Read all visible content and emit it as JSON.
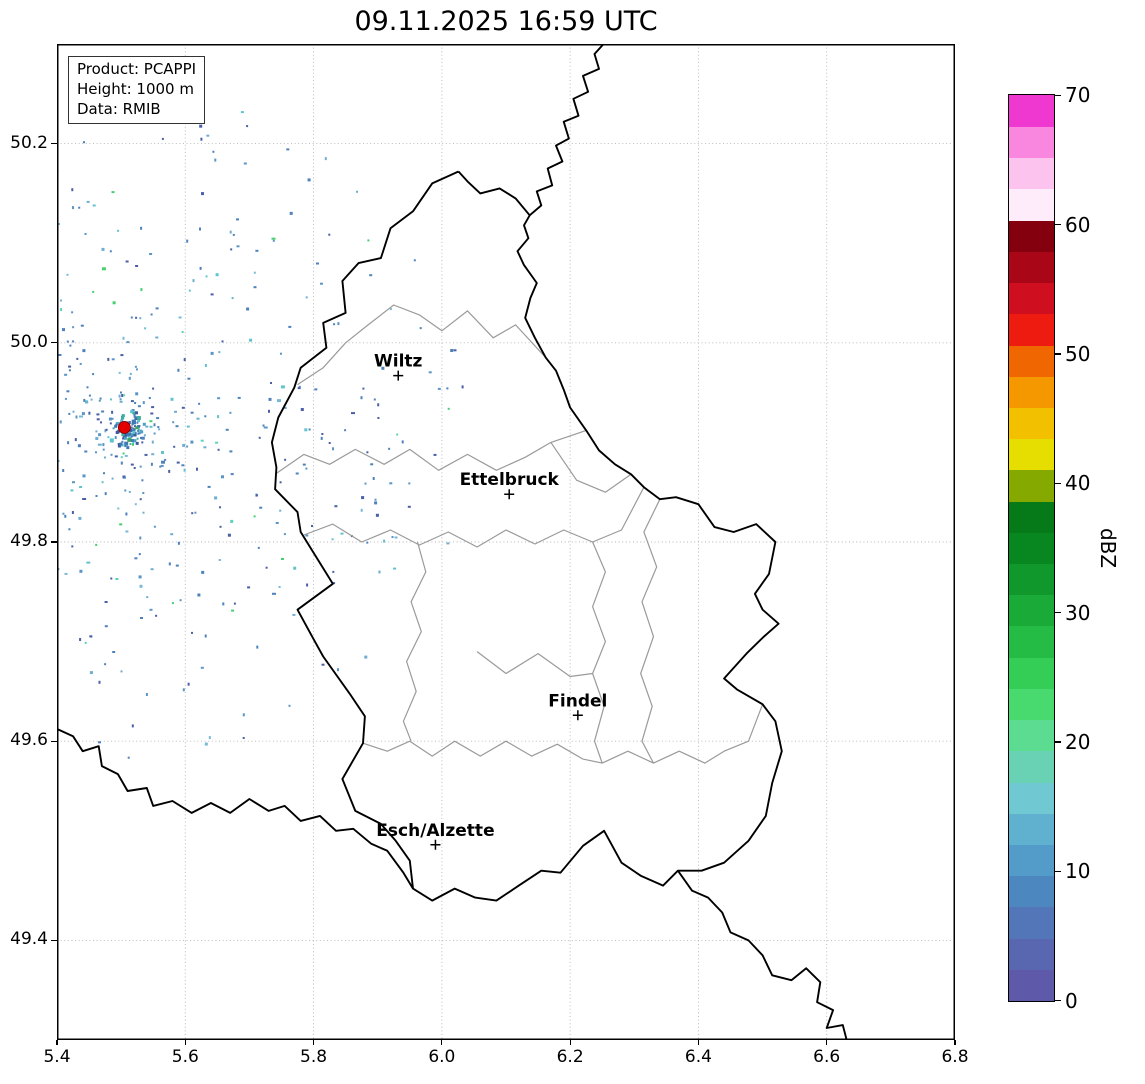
{
  "title": "09.11.2025 16:59 UTC",
  "info_box": {
    "lines": [
      "Product: PCAPPI",
      "Height: 1000 m",
      "Data: RMIB"
    ]
  },
  "chart_data": {
    "type": "heatmap",
    "title": "09.11.2025 16:59 UTC",
    "product": "PCAPPI",
    "height": "1000 m",
    "data_source": "RMIB",
    "x_axis": {
      "range": [
        5.4,
        6.8
      ],
      "ticks": [
        5.4,
        5.6,
        5.8,
        6.0,
        6.2,
        6.4,
        6.6,
        6.8
      ]
    },
    "y_axis": {
      "range": [
        49.3,
        50.3
      ],
      "ticks": [
        49.4,
        49.6,
        49.8,
        50.0,
        50.2
      ]
    },
    "grid": "dotted",
    "colorbar": {
      "label": "dBZ",
      "range": [
        0,
        70
      ],
      "ticks": [
        0,
        10,
        20,
        30,
        40,
        50,
        60,
        70
      ],
      "step": 2.5,
      "colors_bottom_to_top": [
        "#5e59a8",
        "#5867b0",
        "#5276b8",
        "#4d87c0",
        "#539bc8",
        "#60b1cf",
        "#6fc8d2",
        "#6ad2b4",
        "#5cdc91",
        "#48da6e",
        "#34cd55",
        "#25bc45",
        "#1aaa38",
        "#10982c",
        "#088620",
        "#067a18",
        "#86a900",
        "#e5de00",
        "#f3c000",
        "#f59800",
        "#f06600",
        "#ee1c10",
        "#cf0e20",
        "#a90617",
        "#84000f",
        "#feecfa",
        "#fcc3ee",
        "#f987e0"
      ],
      "top_color": "#ee38d0"
    },
    "cities": [
      {
        "name": "Wiltz",
        "lon": 5.932,
        "lat": 49.967
      },
      {
        "name": "Ettelbruck",
        "lon": 6.105,
        "lat": 49.848
      },
      {
        "name": "Findel",
        "lon": 6.212,
        "lat": 49.626
      },
      {
        "name": "Esch/Alzette",
        "lon": 5.99,
        "lat": 49.496
      }
    ],
    "radar_site": {
      "lon": 5.505,
      "lat": 49.915,
      "marker_color": "#e50000"
    },
    "echo_field": {
      "center_lon": 5.505,
      "center_lat": 49.915,
      "radius_px": 345,
      "count": 640,
      "core_count": 85,
      "seed": 20251109,
      "palette": [
        [
          "#4a5fa8",
          0.22
        ],
        [
          "#4d82bb",
          0.3
        ],
        [
          "#5b95c6",
          0.18
        ],
        [
          "#6fadd2",
          0.1
        ],
        [
          "#79b9d8",
          0.06
        ],
        [
          "#62c3cf",
          0.07
        ],
        [
          "#5cd3b8",
          0.04
        ],
        [
          "#46cf6e",
          0.03
        ]
      ],
      "core_palette": [
        [
          "#3d5a9e",
          0.3
        ],
        [
          "#4179b2",
          0.25
        ],
        [
          "#49a0c6",
          0.15
        ],
        [
          "#3fae9f",
          0.12
        ],
        [
          "#57c7cf",
          0.1
        ],
        [
          "#3aa65a",
          0.08
        ]
      ]
    }
  },
  "map_borders": {
    "country_color": "#000000",
    "district_color": "#9a9a9a",
    "country": [
      [
        [
          6.026,
          50.172
        ],
        [
          5.985,
          50.16
        ],
        [
          5.955,
          50.132
        ],
        [
          5.92,
          50.115
        ],
        [
          5.905,
          50.085
        ],
        [
          5.87,
          50.08
        ],
        [
          5.845,
          50.062
        ],
        [
          5.85,
          50.03
        ],
        [
          5.815,
          50.02
        ],
        [
          5.82,
          49.995
        ],
        [
          5.78,
          49.975
        ],
        [
          5.77,
          49.955
        ],
        [
          5.745,
          49.925
        ],
        [
          5.735,
          49.9
        ],
        [
          5.742,
          49.875
        ],
        [
          5.74,
          49.853
        ],
        [
          5.775,
          49.83
        ],
        [
          5.78,
          49.81
        ],
        [
          5.83,
          49.758
        ],
        [
          5.775,
          49.732
        ],
        [
          5.802,
          49.7
        ],
        [
          5.815,
          49.685
        ],
        [
          5.856,
          49.648
        ],
        [
          5.88,
          49.625
        ],
        [
          5.877,
          49.598
        ],
        [
          5.845,
          49.562
        ],
        [
          5.865,
          49.53
        ],
        [
          5.905,
          49.517
        ],
        [
          5.928,
          49.5
        ],
        [
          5.95,
          49.48
        ],
        [
          5.955,
          49.452
        ],
        [
          5.985,
          49.44
        ],
        [
          6.02,
          49.452
        ],
        [
          6.052,
          49.443
        ],
        [
          6.085,
          49.44
        ],
        [
          6.12,
          49.455
        ],
        [
          6.155,
          49.47
        ],
        [
          6.185,
          49.468
        ],
        [
          6.22,
          49.495
        ],
        [
          6.253,
          49.51
        ],
        [
          6.28,
          49.478
        ],
        [
          6.31,
          49.465
        ],
        [
          6.345,
          49.455
        ],
        [
          6.368,
          49.47
        ],
        [
          6.405,
          49.47
        ],
        [
          6.44,
          49.478
        ],
        [
          6.478,
          49.5
        ],
        [
          6.505,
          49.525
        ],
        [
          6.515,
          49.558
        ],
        [
          6.53,
          49.59
        ],
        [
          6.52,
          49.62
        ],
        [
          6.5,
          49.637
        ],
        [
          6.46,
          49.652
        ],
        [
          6.44,
          49.663
        ],
        [
          6.475,
          49.688
        ],
        [
          6.502,
          49.705
        ],
        [
          6.525,
          49.718
        ],
        [
          6.5,
          49.732
        ],
        [
          6.488,
          49.748
        ],
        [
          6.51,
          49.768
        ],
        [
          6.52,
          49.8
        ],
        [
          6.49,
          49.818
        ],
        [
          6.455,
          49.81
        ],
        [
          6.425,
          49.815
        ],
        [
          6.4,
          49.838
        ],
        [
          6.365,
          49.845
        ],
        [
          6.34,
          49.843
        ],
        [
          6.315,
          49.855
        ],
        [
          6.295,
          49.868
        ],
        [
          6.27,
          49.878
        ],
        [
          6.245,
          49.892
        ],
        [
          6.225,
          49.912
        ],
        [
          6.2,
          49.935
        ],
        [
          6.19,
          49.953
        ],
        [
          6.178,
          49.972
        ],
        [
          6.162,
          49.985
        ],
        [
          6.145,
          50.005
        ],
        [
          6.13,
          50.025
        ],
        [
          6.138,
          50.045
        ],
        [
          6.148,
          50.06
        ],
        [
          6.128,
          50.078
        ],
        [
          6.118,
          50.092
        ],
        [
          6.135,
          50.105
        ],
        [
          6.128,
          50.118
        ],
        [
          6.137,
          50.128
        ],
        [
          6.115,
          50.145
        ],
        [
          6.09,
          50.155
        ],
        [
          6.06,
          50.15
        ],
        [
          6.04,
          50.162
        ],
        [
          6.026,
          50.172
        ]
      ],
      [
        [
          6.137,
          50.128
        ],
        [
          6.155,
          50.138
        ],
        [
          6.148,
          50.152
        ],
        [
          6.172,
          50.158
        ],
        [
          6.165,
          50.175
        ],
        [
          6.188,
          50.182
        ],
        [
          6.178,
          50.198
        ],
        [
          6.198,
          50.205
        ],
        [
          6.19,
          50.222
        ],
        [
          6.213,
          50.228
        ],
        [
          6.205,
          50.245
        ],
        [
          6.228,
          50.252
        ],
        [
          6.22,
          50.268
        ],
        [
          6.245,
          50.275
        ],
        [
          6.238,
          50.29
        ],
        [
          6.255,
          50.302
        ]
      ],
      [
        [
          5.398,
          49.613
        ],
        [
          5.425,
          49.605
        ],
        [
          5.44,
          49.59
        ],
        [
          5.465,
          49.595
        ],
        [
          5.47,
          49.575
        ],
        [
          5.495,
          49.567
        ],
        [
          5.51,
          49.55
        ],
        [
          5.54,
          49.553
        ],
        [
          5.55,
          49.535
        ],
        [
          5.58,
          49.54
        ],
        [
          5.61,
          49.528
        ],
        [
          5.64,
          49.538
        ],
        [
          5.67,
          49.528
        ],
        [
          5.7,
          49.542
        ],
        [
          5.73,
          49.53
        ],
        [
          5.755,
          49.535
        ],
        [
          5.78,
          49.52
        ],
        [
          5.81,
          49.525
        ],
        [
          5.835,
          49.51
        ],
        [
          5.862,
          49.512
        ],
        [
          5.89,
          49.497
        ],
        [
          5.915,
          49.49
        ],
        [
          5.94,
          49.468
        ],
        [
          5.955,
          49.452
        ]
      ],
      [
        [
          6.368,
          49.47
        ],
        [
          6.39,
          49.45
        ],
        [
          6.415,
          49.443
        ],
        [
          6.437,
          49.428
        ],
        [
          6.45,
          49.408
        ],
        [
          6.478,
          49.4
        ],
        [
          6.5,
          49.385
        ],
        [
          6.515,
          49.365
        ],
        [
          6.545,
          49.36
        ],
        [
          6.568,
          49.372
        ],
        [
          6.59,
          49.358
        ],
        [
          6.585,
          49.338
        ],
        [
          6.61,
          49.33
        ],
        [
          6.6,
          49.312
        ],
        [
          6.625,
          49.315
        ],
        [
          6.632,
          49.298
        ]
      ]
    ],
    "districts": [
      [
        [
          5.775,
          49.958
        ],
        [
          5.815,
          49.975
        ],
        [
          5.85,
          50.0
        ],
        [
          5.885,
          50.018
        ],
        [
          5.925,
          50.038
        ],
        [
          5.965,
          50.028
        ],
        [
          6.0,
          50.012
        ],
        [
          6.04,
          50.032
        ],
        [
          6.08,
          50.005
        ],
        [
          6.115,
          50.018
        ],
        [
          6.162,
          49.985
        ]
      ],
      [
        [
          5.74,
          49.868
        ],
        [
          5.785,
          49.888
        ],
        [
          5.825,
          49.878
        ],
        [
          5.865,
          49.893
        ],
        [
          5.91,
          49.878
        ],
        [
          5.95,
          49.893
        ],
        [
          5.995,
          49.872
        ],
        [
          6.04,
          49.888
        ],
        [
          6.085,
          49.872
        ],
        [
          6.13,
          49.885
        ],
        [
          6.17,
          49.9
        ],
        [
          6.225,
          49.912
        ]
      ],
      [
        [
          5.785,
          49.807
        ],
        [
          5.83,
          49.818
        ],
        [
          5.875,
          49.8
        ],
        [
          5.92,
          49.812
        ],
        [
          5.965,
          49.797
        ],
        [
          6.01,
          49.81
        ],
        [
          6.055,
          49.795
        ],
        [
          6.1,
          49.812
        ],
        [
          6.145,
          49.798
        ],
        [
          6.19,
          49.812
        ],
        [
          6.235,
          49.8
        ],
        [
          6.28,
          49.812
        ],
        [
          6.315,
          49.855
        ]
      ],
      [
        [
          5.962,
          49.8
        ],
        [
          5.975,
          49.77
        ],
        [
          5.952,
          49.74
        ],
        [
          5.968,
          49.71
        ],
        [
          5.945,
          49.68
        ],
        [
          5.96,
          49.65
        ],
        [
          5.94,
          49.62
        ],
        [
          5.952,
          49.6
        ]
      ],
      [
        [
          6.235,
          49.8
        ],
        [
          6.255,
          49.77
        ],
        [
          6.235,
          49.735
        ],
        [
          6.255,
          49.7
        ],
        [
          6.235,
          49.668
        ],
        [
          6.253,
          49.635
        ],
        [
          6.238,
          49.6
        ],
        [
          6.25,
          49.578
        ]
      ],
      [
        [
          5.877,
          49.598
        ],
        [
          5.915,
          49.59
        ],
        [
          5.95,
          49.6
        ],
        [
          5.985,
          49.585
        ],
        [
          6.02,
          49.6
        ],
        [
          6.06,
          49.585
        ],
        [
          6.1,
          49.6
        ],
        [
          6.14,
          49.585
        ],
        [
          6.18,
          49.597
        ],
        [
          6.22,
          49.582
        ],
        [
          6.25,
          49.578
        ],
        [
          6.29,
          49.59
        ],
        [
          6.33,
          49.578
        ],
        [
          6.37,
          49.59
        ],
        [
          6.41,
          49.578
        ],
        [
          6.44,
          49.59
        ],
        [
          6.478,
          49.6
        ],
        [
          6.5,
          49.637
        ]
      ],
      [
        [
          6.055,
          49.69
        ],
        [
          6.1,
          49.668
        ],
        [
          6.15,
          49.688
        ],
        [
          6.2,
          49.665
        ],
        [
          6.235,
          49.668
        ]
      ],
      [
        [
          6.295,
          49.868
        ],
        [
          6.255,
          49.85
        ],
        [
          6.21,
          49.862
        ],
        [
          6.17,
          49.9
        ]
      ],
      [
        [
          6.34,
          49.843
        ],
        [
          6.315,
          49.81
        ],
        [
          6.335,
          49.775
        ],
        [
          6.312,
          49.74
        ],
        [
          6.33,
          49.705
        ],
        [
          6.31,
          49.668
        ],
        [
          6.328,
          49.635
        ],
        [
          6.312,
          49.6
        ],
        [
          6.33,
          49.578
        ]
      ]
    ]
  }
}
